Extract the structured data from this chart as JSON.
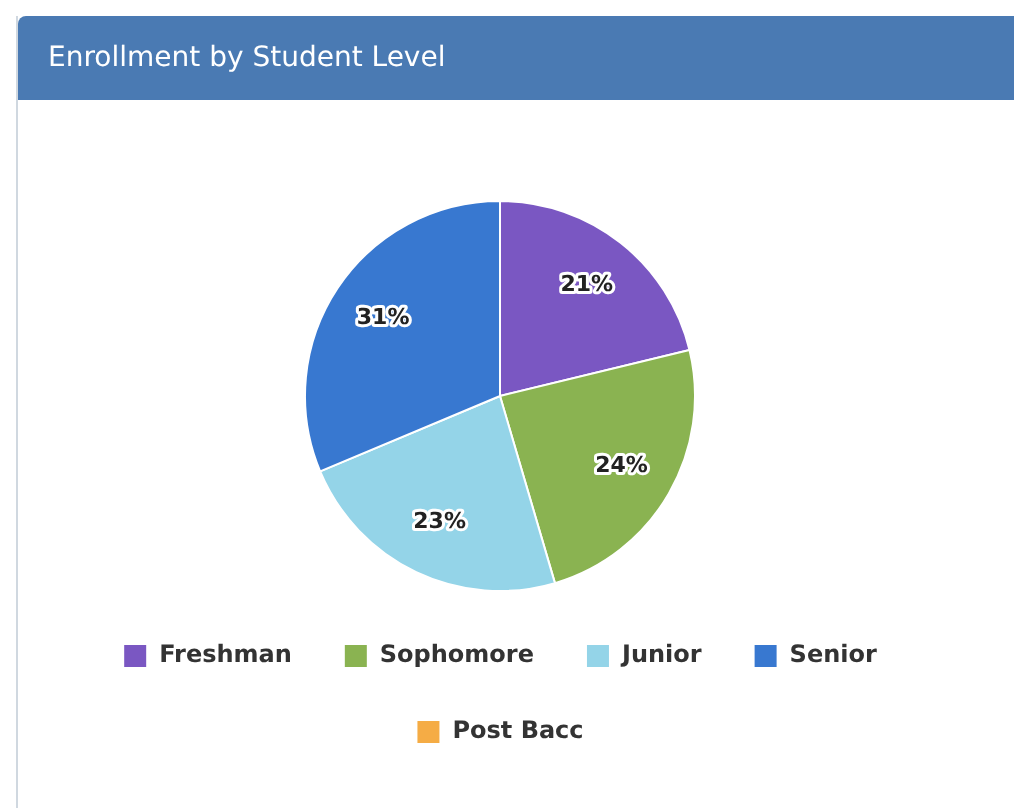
{
  "chart_data": {
    "type": "pie",
    "title": "Enrollment by Student Level",
    "categories": [
      "Freshman",
      "Sophomore",
      "Junior",
      "Senior",
      "Post Bacc"
    ],
    "values": [
      21,
      24,
      23,
      31,
      0
    ],
    "colors": [
      "#7a57c2",
      "#8ab351",
      "#94d4e8",
      "#3878d0",
      "#f5ac45"
    ],
    "value_labels": [
      "21%",
      "24%",
      "23%",
      "31%",
      null
    ],
    "legend": "bottom"
  }
}
